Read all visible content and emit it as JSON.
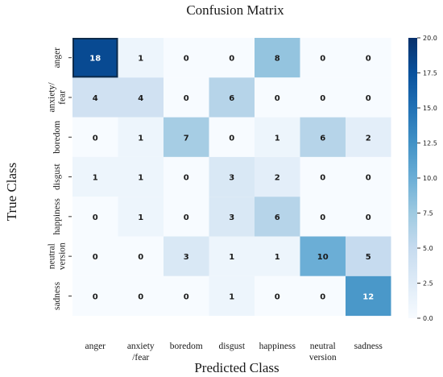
{
  "chart_data": {
    "type": "heatmap",
    "title": "Confusion Matrix",
    "xlabel": "Predicted Class",
    "ylabel": "True Class",
    "x_categories": [
      "anger",
      "anxiety\n/fear",
      "boredom",
      "disgust",
      "happiness",
      "neutral\nversion",
      "sadness"
    ],
    "y_categories": [
      "anger",
      "anxiety/\nfear",
      "boredom",
      "disgust",
      "happiness",
      "neutral\nversion",
      "sadness"
    ],
    "values": [
      [
        18,
        1,
        0,
        0,
        8,
        0,
        0
      ],
      [
        4,
        4,
        0,
        6,
        0,
        0,
        0
      ],
      [
        0,
        1,
        7,
        0,
        1,
        6,
        2
      ],
      [
        1,
        1,
        0,
        3,
        2,
        0,
        0
      ],
      [
        0,
        1,
        0,
        3,
        6,
        0,
        0
      ],
      [
        0,
        0,
        3,
        1,
        1,
        10,
        5
      ],
      [
        0,
        0,
        0,
        1,
        0,
        0,
        12
      ]
    ],
    "colorbar": {
      "min": 0,
      "max": 20,
      "ticks": [
        "0.0",
        "2.5",
        "5.0",
        "7.5",
        "10.0",
        "12.5",
        "15.0",
        "17.5",
        "20.0"
      ],
      "colors": [
        "#f7fbff",
        "#deebf7",
        "#c6dbef",
        "#9ecae1",
        "#6baed6",
        "#4292c6",
        "#2171b5",
        "#08519c",
        "#08306b"
      ]
    },
    "highlight_color": "#0d2b4a",
    "grid": false,
    "legend": "colorbar-right"
  }
}
